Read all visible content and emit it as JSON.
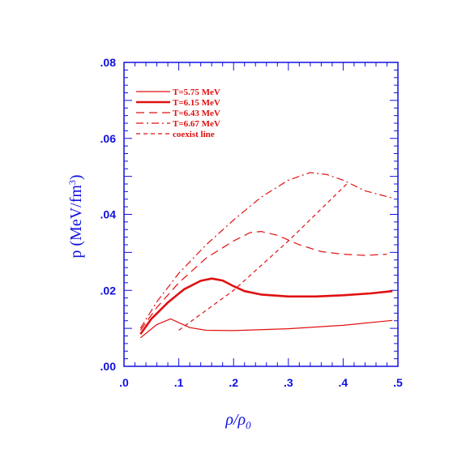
{
  "colors": {
    "axes": "#1010e0",
    "series": "#e01010"
  },
  "chart_data": {
    "type": "line",
    "xlabel": "ρ/ρ",
    "xlabel_sub": "0",
    "ylabel": "p  (MeV/fm",
    "ylabel_sup": "3",
    "ylabel_end": ")",
    "xlim": [
      0.0,
      0.5
    ],
    "ylim": [
      0.0,
      0.08
    ],
    "x_ticks": [
      0.0,
      0.1,
      0.2,
      0.3,
      0.4,
      0.5
    ],
    "x_tick_labels": [
      ".0",
      ".1",
      ".2",
      ".3",
      ".4",
      ".5"
    ],
    "y_ticks": [
      0.0,
      0.02,
      0.04,
      0.06,
      0.08
    ],
    "y_tick_labels": [
      ".00",
      ".02",
      ".04",
      ".06",
      ".08"
    ],
    "grid": false,
    "legend_position": "top-left",
    "series": [
      {
        "name": "T=5.75 MeV",
        "style": "solid-thin",
        "x": [
          0.03,
          0.06,
          0.085,
          0.1,
          0.12,
          0.15,
          0.2,
          0.3,
          0.4,
          0.49
        ],
        "y": [
          0.0075,
          0.011,
          0.0125,
          0.0115,
          0.0102,
          0.0095,
          0.0094,
          0.0099,
          0.0108,
          0.0121
        ]
      },
      {
        "name": "T=6.15 MeV",
        "style": "solid-thick",
        "x": [
          0.03,
          0.05,
          0.08,
          0.11,
          0.14,
          0.16,
          0.18,
          0.2,
          0.22,
          0.25,
          0.3,
          0.35,
          0.4,
          0.45,
          0.49
        ],
        "y": [
          0.0085,
          0.0125,
          0.0168,
          0.0203,
          0.0225,
          0.0231,
          0.0226,
          0.0211,
          0.0198,
          0.0189,
          0.0184,
          0.0184,
          0.0187,
          0.0192,
          0.0198
        ]
      },
      {
        "name": "T=6.43 MeV",
        "style": "long-dash",
        "x": [
          0.03,
          0.06,
          0.1,
          0.15,
          0.2,
          0.23,
          0.25,
          0.28,
          0.32,
          0.36,
          0.4,
          0.44,
          0.48
        ],
        "y": [
          0.0095,
          0.0155,
          0.022,
          0.0285,
          0.033,
          0.0352,
          0.0355,
          0.0345,
          0.032,
          0.0302,
          0.0295,
          0.0292,
          0.0295
        ]
      },
      {
        "name": "T=6.67 MeV",
        "style": "dash-dot",
        "x": [
          0.03,
          0.06,
          0.1,
          0.15,
          0.2,
          0.25,
          0.3,
          0.34,
          0.37,
          0.4,
          0.44,
          0.49
        ],
        "y": [
          0.01,
          0.017,
          0.0245,
          0.032,
          0.0385,
          0.0445,
          0.049,
          0.051,
          0.0505,
          0.049,
          0.0462,
          0.0443
        ]
      },
      {
        "name": "coexist line",
        "style": "short-dash",
        "x": [
          0.1,
          0.2,
          0.3,
          0.41
        ],
        "y": [
          0.0095,
          0.02,
          0.033,
          0.0485
        ]
      }
    ]
  }
}
